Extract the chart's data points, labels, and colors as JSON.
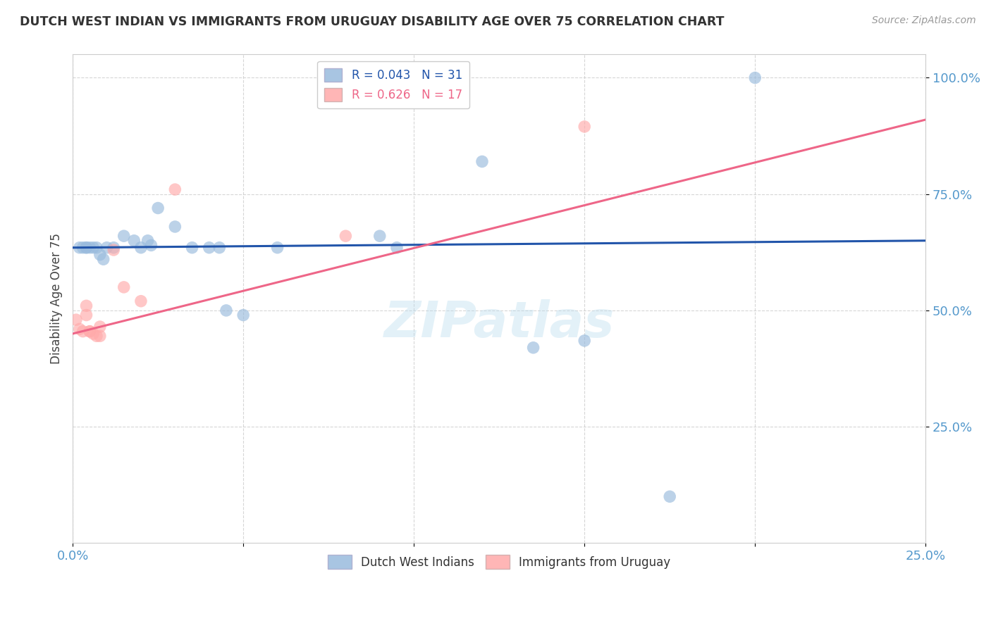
{
  "title": "DUTCH WEST INDIAN VS IMMIGRANTS FROM URUGUAY DISABILITY AGE OVER 75 CORRELATION CHART",
  "source": "Source: ZipAtlas.com",
  "ylabel": "Disability Age Over 75",
  "xlim": [
    0.0,
    0.25
  ],
  "ylim": [
    0.0,
    1.05
  ],
  "xticks": [
    0.0,
    0.05,
    0.1,
    0.15,
    0.2,
    0.25
  ],
  "xtick_labels": [
    "0.0%",
    "",
    "",
    "",
    "",
    "25.0%"
  ],
  "ytick_labels": [
    "25.0%",
    "50.0%",
    "75.0%",
    "100.0%"
  ],
  "yticks": [
    0.25,
    0.5,
    0.75,
    1.0
  ],
  "legend_r1": "R = 0.043",
  "legend_n1": "N = 31",
  "legend_r2": "R = 0.626",
  "legend_n2": "N = 17",
  "color_blue": "#99BBDD",
  "color_pink": "#FFAAAA",
  "line_color_blue": "#2255AA",
  "line_color_pink": "#EE6688",
  "watermark_text": "ZIPatlas",
  "dutch_west_indian": [
    [
      0.002,
      0.635
    ],
    [
      0.003,
      0.635
    ],
    [
      0.004,
      0.635
    ],
    [
      0.004,
      0.635
    ],
    [
      0.005,
      0.635
    ],
    [
      0.006,
      0.635
    ],
    [
      0.007,
      0.635
    ],
    [
      0.008,
      0.62
    ],
    [
      0.009,
      0.61
    ],
    [
      0.01,
      0.635
    ],
    [
      0.012,
      0.635
    ],
    [
      0.015,
      0.66
    ],
    [
      0.018,
      0.65
    ],
    [
      0.02,
      0.635
    ],
    [
      0.022,
      0.65
    ],
    [
      0.023,
      0.64
    ],
    [
      0.025,
      0.72
    ],
    [
      0.03,
      0.68
    ],
    [
      0.035,
      0.635
    ],
    [
      0.04,
      0.635
    ],
    [
      0.043,
      0.635
    ],
    [
      0.045,
      0.5
    ],
    [
      0.05,
      0.49
    ],
    [
      0.06,
      0.635
    ],
    [
      0.09,
      0.66
    ],
    [
      0.095,
      0.635
    ],
    [
      0.12,
      0.82
    ],
    [
      0.135,
      0.42
    ],
    [
      0.15,
      0.435
    ],
    [
      0.175,
      0.1
    ],
    [
      0.2,
      1.0
    ]
  ],
  "immigrants_uruguay": [
    [
      0.001,
      0.48
    ],
    [
      0.002,
      0.46
    ],
    [
      0.003,
      0.455
    ],
    [
      0.004,
      0.49
    ],
    [
      0.004,
      0.51
    ],
    [
      0.005,
      0.455
    ],
    [
      0.005,
      0.455
    ],
    [
      0.006,
      0.45
    ],
    [
      0.007,
      0.445
    ],
    [
      0.008,
      0.445
    ],
    [
      0.008,
      0.465
    ],
    [
      0.012,
      0.63
    ],
    [
      0.015,
      0.55
    ],
    [
      0.02,
      0.52
    ],
    [
      0.03,
      0.76
    ],
    [
      0.08,
      0.66
    ],
    [
      0.15,
      0.895
    ]
  ],
  "blue_trendline": [
    [
      0.0,
      0.635
    ],
    [
      0.25,
      0.65
    ]
  ],
  "pink_trendline": [
    [
      0.0,
      0.45
    ],
    [
      0.25,
      0.91
    ]
  ]
}
